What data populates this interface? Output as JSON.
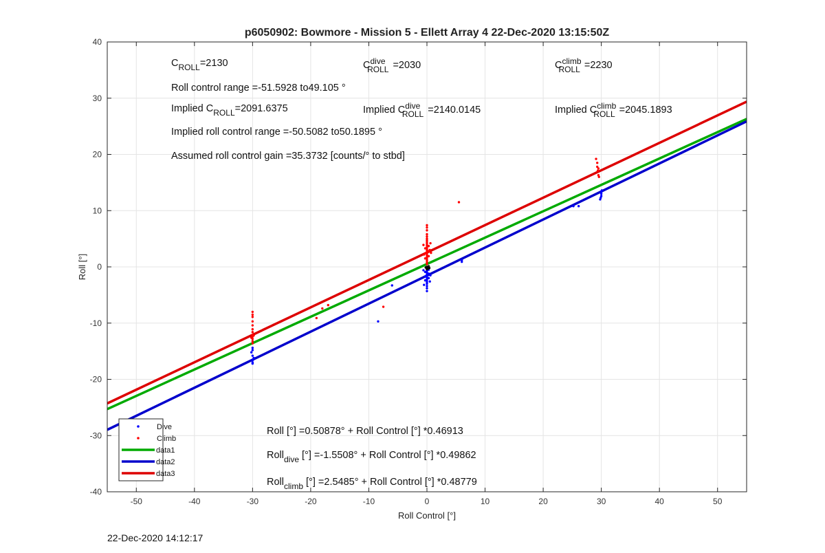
{
  "chart_data": {
    "type": "scatter",
    "title": "p6050902: Bowmore - Mission 5 - Ellett Array 4 22-Dec-2020 13:15:50Z",
    "xlabel": "Roll Control [°]",
    "ylabel": "Roll [°]",
    "xlim": [
      -55,
      55
    ],
    "ylim": [
      -40,
      40
    ],
    "xticks": [
      -50,
      -40,
      -30,
      -20,
      -10,
      0,
      10,
      20,
      30,
      40,
      50
    ],
    "yticks": [
      -40,
      -30,
      -20,
      -10,
      0,
      10,
      20,
      30,
      40
    ],
    "grid": true,
    "legend_position": "bottom-left",
    "series": [
      {
        "name": "Dive",
        "kind": "points",
        "color": "#0000ff",
        "points": [
          [
            -30,
            -17.2
          ],
          [
            -30,
            -17.0
          ],
          [
            -30,
            -16.6
          ],
          [
            -30,
            -15.8
          ],
          [
            -30,
            -14.8
          ],
          [
            -30,
            -14.4
          ],
          [
            -30.2,
            -15.2
          ],
          [
            -29.8,
            -16.2
          ],
          [
            -8.4,
            -9.7
          ],
          [
            -6,
            -3.3
          ],
          [
            0,
            -4.3
          ],
          [
            0,
            -3.8
          ],
          [
            0,
            -3.4
          ],
          [
            0,
            -3.0
          ],
          [
            0,
            -2.8
          ],
          [
            0,
            -2.5
          ],
          [
            0,
            -2.2
          ],
          [
            0,
            -1.9
          ],
          [
            0,
            -1.6
          ],
          [
            0,
            -1.3
          ],
          [
            0,
            -1.0
          ],
          [
            0,
            -0.7
          ],
          [
            0,
            -0.4
          ],
          [
            0,
            -0.1
          ],
          [
            -0.3,
            -2.4
          ],
          [
            -0.3,
            -1.7
          ],
          [
            -0.3,
            -0.9
          ],
          [
            0.3,
            -2.0
          ],
          [
            0.3,
            -1.2
          ],
          [
            0.3,
            -0.5
          ],
          [
            -0.5,
            -3.2
          ],
          [
            0.5,
            -2.6
          ],
          [
            0.6,
            -1.5
          ],
          [
            -0.6,
            -0.6
          ],
          [
            6,
            0.9
          ],
          [
            6,
            1.2
          ],
          [
            25.2,
            10.8
          ],
          [
            26.1,
            10.8
          ],
          [
            29.8,
            12.0
          ],
          [
            29.9,
            12.3
          ],
          [
            30,
            12.6
          ],
          [
            30,
            13.0
          ],
          [
            30,
            13.3
          ],
          [
            30.1,
            13.6
          ]
        ]
      },
      {
        "name": "Climb",
        "kind": "points",
        "color": "#ff0000",
        "points": [
          [
            -30,
            -13.6
          ],
          [
            -30,
            -13.2
          ],
          [
            -30,
            -12.8
          ],
          [
            -30,
            -12.4
          ],
          [
            -30,
            -12.1
          ],
          [
            -30,
            -11.6
          ],
          [
            -30,
            -11.1
          ],
          [
            -30,
            -10.4
          ],
          [
            -30,
            -9.7
          ],
          [
            -30,
            -8.9
          ],
          [
            -30,
            -8.5
          ],
          [
            -30,
            -8.0
          ],
          [
            -30.2,
            -12.6
          ],
          [
            -29.8,
            -12.2
          ],
          [
            -19,
            -9.1
          ],
          [
            -18,
            -7.4
          ],
          [
            -17,
            -6.8
          ],
          [
            -7.5,
            -7.1
          ],
          [
            0,
            0.5
          ],
          [
            0,
            0.8
          ],
          [
            0,
            1.1
          ],
          [
            0,
            1.4
          ],
          [
            0,
            1.7
          ],
          [
            0,
            2.0
          ],
          [
            0,
            2.3
          ],
          [
            0,
            2.6
          ],
          [
            0,
            2.9
          ],
          [
            0,
            3.2
          ],
          [
            0,
            3.5
          ],
          [
            0,
            3.8
          ],
          [
            0,
            4.1
          ],
          [
            0,
            4.4
          ],
          [
            0,
            4.7
          ],
          [
            0,
            5.0
          ],
          [
            0,
            5.4
          ],
          [
            0,
            5.8
          ],
          [
            0,
            6.5
          ],
          [
            0,
            7.0
          ],
          [
            0,
            7.4
          ],
          [
            -0.3,
            1.5
          ],
          [
            -0.3,
            2.4
          ],
          [
            -0.3,
            3.3
          ],
          [
            0.3,
            1.9
          ],
          [
            0.3,
            2.8
          ],
          [
            0.3,
            3.7
          ],
          [
            -0.5,
            2.2
          ],
          [
            0.5,
            3.0
          ],
          [
            0.6,
            4.2
          ],
          [
            -0.6,
            3.9
          ],
          [
            0.7,
            2.5
          ],
          [
            5.5,
            11.5
          ],
          [
            29.1,
            19.2
          ],
          [
            29.3,
            18.5
          ],
          [
            29.5,
            17.5
          ],
          [
            29.4,
            17.1
          ],
          [
            29.5,
            16.3
          ],
          [
            29.6,
            16.0
          ],
          [
            29.3,
            17.8
          ]
        ]
      },
      {
        "name": "data1",
        "kind": "line",
        "color": "#00aa00",
        "intercept": 0.50878,
        "slope": 0.46913
      },
      {
        "name": "data2",
        "kind": "line",
        "color": "#0000cc",
        "intercept": -1.5508,
        "slope": 0.49862
      },
      {
        "name": "data3",
        "kind": "line",
        "color": "#dd0000",
        "intercept": 2.5485,
        "slope": 0.48779
      }
    ],
    "black_points": [
      [
        0,
        -0.4
      ],
      [
        0,
        -0.2
      ],
      [
        0,
        0.0
      ],
      [
        0.2,
        -0.3
      ],
      [
        -0.2,
        -0.1
      ],
      [
        0.4,
        -0.2
      ],
      [
        0.3,
        0.1
      ]
    ],
    "annotations": {
      "c_roll": {
        "base": "C",
        "sub": "ROLL",
        "sup": "",
        "value": "=2130"
      },
      "c_roll_dive": {
        "base": "C",
        "sub": "ROLL",
        "sup": "dive",
        "value": "=2030"
      },
      "c_roll_climb": {
        "base": "C",
        "sub": "ROLL",
        "sup": "climb",
        "value": "=2230"
      },
      "roll_range": "Roll control range =-51.5928 to49.105 °",
      "implied_c_roll": {
        "prefix": "Implied ",
        "base": "C",
        "sub": "ROLL",
        "sup": "",
        "value": "=2091.6375"
      },
      "implied_c_roll_dive": {
        "prefix": "Implied ",
        "base": "C",
        "sub": "ROLL",
        "sup": "dive",
        "value": "=2140.0145"
      },
      "implied_c_roll_climb": {
        "prefix": "Implied ",
        "base": "C",
        "sub": "ROLL",
        "sup": "climb",
        "value": "=2045.1893"
      },
      "implied_range": "Implied roll control range =-50.5082 to50.1895 °",
      "gain": "Assumed roll control gain =35.3732 [counts/° to stbd]",
      "fit_all": {
        "base": "Roll",
        "sub": "",
        "rest": " [°] =0.50878° + Roll Control [°] *0.46913"
      },
      "fit_dive": {
        "base": "Roll",
        "sub": "dive",
        "rest": " [°] =-1.5508° + Roll Control [°] *0.49862"
      },
      "fit_climb": {
        "base": "Roll",
        "sub": "climb",
        "rest": " [°] =2.5485° + Roll Control [°] *0.48779"
      }
    }
  },
  "footer": {
    "timestamp": "22-Dec-2020 14:12:17"
  }
}
